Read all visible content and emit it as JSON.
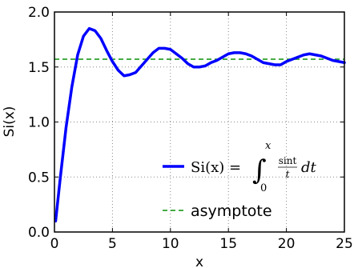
{
  "chart_data": {
    "type": "line",
    "title": "",
    "xlabel": "x",
    "ylabel": "Si(x)",
    "xlim": [
      0,
      25
    ],
    "ylim": [
      0.0,
      2.0
    ],
    "x_ticks": [
      0,
      5,
      10,
      15,
      20,
      25
    ],
    "y_ticks": [
      0.0,
      0.5,
      1.0,
      1.5,
      2.0
    ],
    "x_tick_labels": [
      "0",
      "5",
      "10",
      "15",
      "20",
      "25"
    ],
    "y_tick_labels": [
      "0.0",
      "0.5",
      "1.0",
      "1.5",
      "2.0"
    ],
    "grid": true,
    "legend_position": "lower-right",
    "series": [
      {
        "name": "Si(x) = ∫₀ˣ sint/t dt",
        "style": "solid",
        "color": "#0000ff",
        "x": [
          0.1,
          0.5,
          1.0,
          1.5,
          2.0,
          2.5,
          3.0,
          3.5,
          4.0,
          4.5,
          5.0,
          5.5,
          6.0,
          6.5,
          7.0,
          7.5,
          8.0,
          8.5,
          9.0,
          9.5,
          10.0,
          10.5,
          11.0,
          11.5,
          12.0,
          12.5,
          13.0,
          13.5,
          14.0,
          14.5,
          15.0,
          15.5,
          16.0,
          16.5,
          17.0,
          17.5,
          18.0,
          18.5,
          19.0,
          19.5,
          20.0,
          20.5,
          21.0,
          21.5,
          22.0,
          22.5,
          23.0,
          23.5,
          24.0,
          24.5,
          25.0
        ],
        "y": [
          0.1,
          0.49,
          0.95,
          1.32,
          1.61,
          1.78,
          1.85,
          1.83,
          1.76,
          1.65,
          1.55,
          1.47,
          1.42,
          1.43,
          1.45,
          1.51,
          1.57,
          1.63,
          1.67,
          1.67,
          1.66,
          1.62,
          1.58,
          1.53,
          1.5,
          1.5,
          1.51,
          1.54,
          1.56,
          1.59,
          1.62,
          1.63,
          1.63,
          1.62,
          1.6,
          1.57,
          1.54,
          1.53,
          1.52,
          1.52,
          1.55,
          1.57,
          1.59,
          1.61,
          1.62,
          1.61,
          1.6,
          1.58,
          1.56,
          1.55,
          1.54
        ]
      },
      {
        "name": "asymptote",
        "style": "dashed",
        "color": "#2ca02c",
        "x": [
          0,
          25
        ],
        "y": [
          1.5708,
          1.5708
        ]
      }
    ],
    "legend_label_math": {
      "lhs": "Si(x) =",
      "int": "∫",
      "upper": "x",
      "lower": "0",
      "num": "sint",
      "den": "t",
      "tail": "dt"
    }
  }
}
